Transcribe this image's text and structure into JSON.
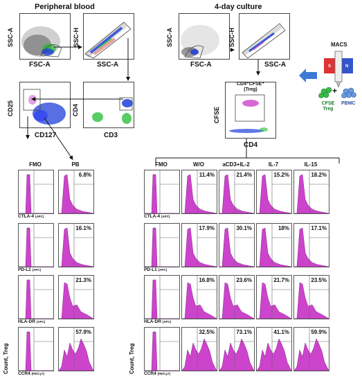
{
  "top": {
    "left_title": "Peripheral blood",
    "right_title": "4-day culture",
    "axes": {
      "ssc_a": "SSC-A",
      "fsc_a": "FSC-A",
      "ssc_h": "SSC-H",
      "cd25": "CD25",
      "cd127": "CD127",
      "cd4": "CD4",
      "cd3": "CD3",
      "cfse": "CFSE"
    },
    "gate_label": "CD4⁺CFSE⁺",
    "gate_label_sub": "(Treg)",
    "macs": "MACS",
    "macs_s": "S",
    "macs_n": "N",
    "cfse_treg": "CFSE",
    "cfse_treg_sub": "Treg",
    "plus": "+",
    "pbmc": "PBMC"
  },
  "pb_columns": [
    "FMO",
    "PB"
  ],
  "culture_columns": [
    "FMO",
    "W/O",
    "aCD3+IL-2",
    "IL-7",
    "IL-15"
  ],
  "rows": [
    {
      "label": "CTLA-4",
      "sub": "(APC)",
      "pb": "6.8%",
      "culture": [
        "11.4%",
        "21.4%",
        "15.2%",
        "18.2%"
      ]
    },
    {
      "label": "PD-L1",
      "sub": "(APC)",
      "pb": "16.1%",
      "culture": [
        "17.9%",
        "30.1%",
        "18%",
        "17.1%"
      ]
    },
    {
      "label": "HLA-DR",
      "sub": "(APC)",
      "pb": "21.3%",
      "culture": [
        "16.8%",
        "23.6%",
        "21.7%",
        "23.5%"
      ]
    },
    {
      "label": "CCR4",
      "sub": "(PE/Cy7)",
      "pb": "57.9%",
      "culture": [
        "32.5%",
        "73.1%",
        "41.1%",
        "59.9%"
      ]
    }
  ],
  "y_axis": "Count, Treg",
  "colors": {
    "hist": "#cc44cc",
    "blue": "#1f3fd8",
    "green": "#22bb33",
    "arrow": "#3a7bd5"
  }
}
